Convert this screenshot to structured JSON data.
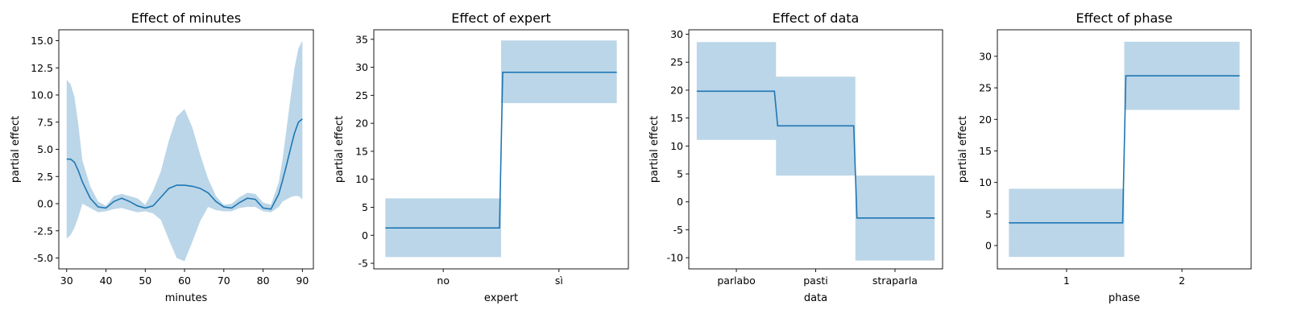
{
  "colors": {
    "line": "#1f77b4",
    "band": "#1f77b4",
    "band_opacity": 0.3,
    "axis": "#000000"
  },
  "chart_data": [
    {
      "type": "line",
      "title": "Effect of minutes",
      "xlabel": "minutes",
      "ylabel": "partial effect",
      "xlim": [
        28,
        92.8
      ],
      "ylim": [
        -6.0,
        16.0
      ],
      "xticks": [
        30,
        40,
        50,
        60,
        70,
        80,
        90
      ],
      "yticks": [
        -5.0,
        -2.5,
        0.0,
        2.5,
        5.0,
        7.5,
        10.0,
        12.5,
        15.0
      ],
      "ytick_decimals": 1,
      "x": [
        30,
        31,
        32,
        33,
        34,
        36,
        38,
        40,
        42,
        44,
        46,
        48,
        50,
        52,
        54,
        56,
        58,
        60,
        62,
        64,
        66,
        68,
        70,
        72,
        74,
        76,
        78,
        80,
        82,
        84,
        85,
        86,
        87,
        88,
        89,
        90
      ],
      "y": [
        4.1,
        4.1,
        3.8,
        3.0,
        2.0,
        0.5,
        -0.3,
        -0.4,
        0.2,
        0.5,
        0.2,
        -0.2,
        -0.4,
        -0.2,
        0.6,
        1.4,
        1.7,
        1.7,
        1.6,
        1.4,
        1.0,
        0.2,
        -0.3,
        -0.4,
        0.1,
        0.5,
        0.4,
        -0.4,
        -0.5,
        0.9,
        2.2,
        3.6,
        5.1,
        6.5,
        7.5,
        7.8
      ],
      "lower": [
        -3.2,
        -2.9,
        -2.2,
        -1.2,
        0.0,
        -0.4,
        -0.8,
        -0.7,
        -0.5,
        -0.4,
        -0.6,
        -0.8,
        -0.7,
        -0.9,
        -1.5,
        -3.3,
        -5.0,
        -5.3,
        -3.5,
        -1.6,
        -0.3,
        -0.6,
        -0.7,
        -0.7,
        -0.4,
        -0.3,
        -0.3,
        -0.7,
        -0.8,
        -0.3,
        0.2,
        0.4,
        0.6,
        0.7,
        0.7,
        0.4
      ],
      "upper": [
        11.4,
        11.0,
        9.8,
        7.2,
        4.0,
        1.6,
        0.2,
        -0.2,
        0.7,
        0.9,
        0.7,
        0.5,
        -0.1,
        1.2,
        3.0,
        5.8,
        8.0,
        8.7,
        7.0,
        4.5,
        2.3,
        0.7,
        -0.1,
        0.0,
        0.6,
        1.0,
        0.9,
        0.1,
        -0.1,
        2.0,
        4.2,
        7.0,
        9.8,
        12.5,
        14.3,
        15.0
      ]
    },
    {
      "type": "step",
      "title": "Effect of expert",
      "xlabel": "expert",
      "ylabel": "partial effect",
      "categories": [
        "no",
        "sì"
      ],
      "ylim": [
        -6.0,
        36.7
      ],
      "yticks": [
        -5,
        0,
        5,
        10,
        15,
        20,
        25,
        30,
        35
      ],
      "ytick_decimals": 0,
      "values": [
        1.3,
        29.1
      ],
      "lower": [
        -3.9,
        23.6
      ],
      "upper": [
        6.6,
        34.8
      ]
    },
    {
      "type": "step",
      "title": "Effect of data",
      "xlabel": "data",
      "ylabel": "partial effect",
      "categories": [
        "parlabo",
        "pasti",
        "straparla"
      ],
      "ylim": [
        -12.0,
        30.8
      ],
      "yticks": [
        -10,
        -5,
        0,
        5,
        10,
        15,
        20,
        25,
        30
      ],
      "ytick_decimals": 0,
      "values": [
        19.8,
        13.6,
        -2.9
      ],
      "lower": [
        11.1,
        4.7,
        -10.5
      ],
      "upper": [
        28.6,
        22.4,
        4.7
      ]
    },
    {
      "type": "step",
      "title": "Effect of phase",
      "xlabel": "phase",
      "ylabel": "partial effect",
      "categories": [
        "1",
        "2"
      ],
      "ylim": [
        -3.7,
        34.2
      ],
      "yticks": [
        0,
        5,
        10,
        15,
        20,
        25,
        30
      ],
      "ytick_decimals": 0,
      "values": [
        3.6,
        26.9
      ],
      "lower": [
        -1.8,
        21.5
      ],
      "upper": [
        9.0,
        32.3
      ]
    }
  ]
}
